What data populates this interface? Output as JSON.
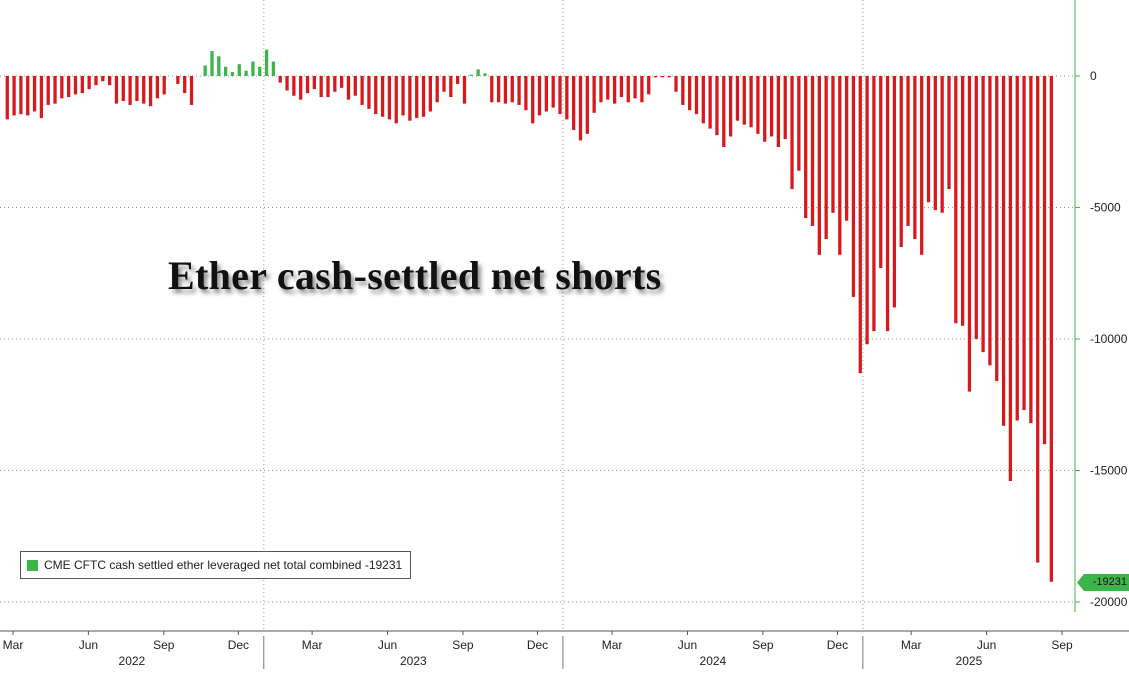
{
  "chart_data": {
    "type": "bar",
    "title": "Ether cash-settled net shorts",
    "legend": {
      "label": "CME CFTC cash settled ether leveraged net total combined -19231",
      "placement": "bottom-left"
    },
    "last_value_label": "-19231",
    "y_axis": {
      "position": "right",
      "ylim": [
        -20000,
        0
      ],
      "ticks": [
        0,
        -5000,
        -10000,
        -15000,
        -20000
      ],
      "tick_labels": [
        "0",
        "-5000",
        "-10000",
        "-15000",
        "-20000"
      ],
      "grid": true
    },
    "x_axis": {
      "month_labels": [
        "Mar",
        "Jun",
        "Sep",
        "Dec",
        "Mar",
        "Jun",
        "Sep",
        "Dec",
        "Mar",
        "Jun",
        "Sep",
        "Dec",
        "Mar",
        "Jun",
        "Sep"
      ],
      "month_dates": [
        "2022-03",
        "2022-06",
        "2022-09",
        "2022-12",
        "2023-03",
        "2023-06",
        "2023-09",
        "2023-12",
        "2024-03",
        "2024-06",
        "2024-09",
        "2024-12",
        "2025-03",
        "2025-06",
        "2025-09"
      ],
      "year_labels": [
        "2022",
        "2023",
        "2024",
        "2025"
      ],
      "grid": true
    },
    "colors": {
      "negative": "#d7191c",
      "positive": "#3cb54a",
      "grid": "#9a9a9a",
      "axis": "#3cb54a"
    },
    "series": [
      {
        "x_start": "2022-02-22",
        "x_end": "2025-08-19",
        "frequency": "weekly",
        "values": [
          -1650,
          -1500,
          -1450,
          -1500,
          -1350,
          -1600,
          -1100,
          -1050,
          -850,
          -800,
          -700,
          -650,
          -500,
          -350,
          -200,
          -350,
          -1050,
          -950,
          -1100,
          -950,
          -1050,
          -1150,
          -850,
          -700,
          0,
          -300,
          -650,
          -1100,
          0,
          400,
          950,
          750,
          350,
          150,
          450,
          200,
          550,
          350,
          1000,
          550,
          -250,
          -550,
          -750,
          -900,
          -650,
          -500,
          -800,
          -800,
          -600,
          -450,
          -900,
          -750,
          -1100,
          -1250,
          -1450,
          -1550,
          -1650,
          -1800,
          -1500,
          -1700,
          -1600,
          -1550,
          -1350,
          -1000,
          -600,
          -800,
          -300,
          -1050,
          50,
          250,
          100,
          -1000,
          -1000,
          -1050,
          -1000,
          -1100,
          -1300,
          -1800,
          -1500,
          -1350,
          -1200,
          -1450,
          -1650,
          -2050,
          -2450,
          -2200,
          -1400,
          -1000,
          -900,
          -1050,
          -800,
          -1000,
          -850,
          -1000,
          -700,
          -50,
          -50,
          -50,
          -600,
          -1100,
          -1300,
          -1450,
          -1800,
          -2000,
          -2250,
          -2700,
          -2300,
          -1700,
          -1850,
          -1950,
          -2200,
          -2500,
          -2300,
          -2700,
          -2400,
          -4300,
          -3600,
          -5400,
          -5700,
          -6800,
          -6200,
          -5200,
          -6800,
          -5500,
          -8400,
          -11300,
          -10200,
          -9700,
          -7300,
          -9700,
          -8800,
          -6500,
          -5700,
          -6200,
          -6800,
          -4800,
          -5100,
          -5200,
          -4300,
          -9400,
          -9500,
          -12000,
          -10000,
          -10500,
          -11000,
          -11600,
          -13300,
          -15400,
          -13100,
          -12700,
          -13200,
          -18500,
          -14000,
          -19231
        ]
      }
    ]
  }
}
